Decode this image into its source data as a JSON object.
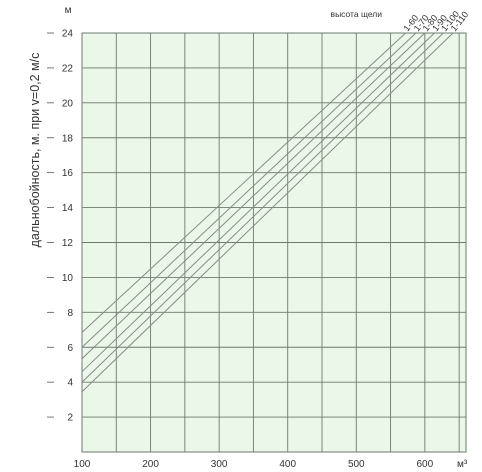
{
  "chart_data": {
    "type": "line",
    "title": "",
    "xlabel": "",
    "x_unit": "м³",
    "ylabel": "дальнобойность, м. при v=0,2 м/с",
    "y_unit": "м",
    "legend_title": "высота щели",
    "xlim": [
      100,
      660
    ],
    "ylim": [
      0,
      24
    ],
    "x_ticks": [
      100,
      200,
      300,
      400,
      500,
      600
    ],
    "y_ticks": [
      2,
      4,
      6,
      8,
      10,
      12,
      14,
      16,
      18,
      20,
      22,
      24
    ],
    "grid": true,
    "background_color": "#eaf7e9",
    "grid_color": "#6f7a70",
    "line_color": "#8a8a8a",
    "series": [
      {
        "name": "1-60",
        "x": [
          100,
          572
        ],
        "y": [
          6.85,
          24
        ]
      },
      {
        "name": "1-70",
        "x": [
          100,
          587
        ],
        "y": [
          6.0,
          24
        ]
      },
      {
        "name": "1-80",
        "x": [
          100,
          600
        ],
        "y": [
          5.35,
          24
        ]
      },
      {
        "name": "1-90",
        "x": [
          100,
          614
        ],
        "y": [
          4.6,
          24
        ]
      },
      {
        "name": "1-100",
        "x": [
          100,
          627
        ],
        "y": [
          4.0,
          24
        ]
      },
      {
        "name": "1-110",
        "x": [
          100,
          641
        ],
        "y": [
          3.45,
          24
        ]
      }
    ]
  }
}
